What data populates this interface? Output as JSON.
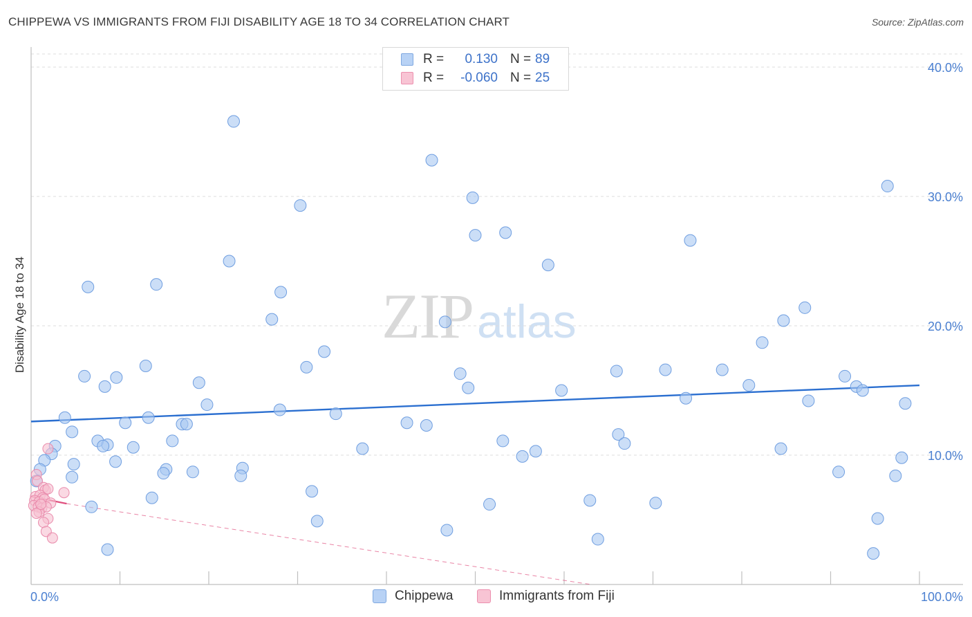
{
  "title": "CHIPPEWA VS IMMIGRANTS FROM FIJI DISABILITY AGE 18 TO 34 CORRELATION CHART",
  "source": "Source: ZipAtlas.com",
  "watermark": {
    "zip": "ZIP",
    "atlas": "atlas"
  },
  "legend": {
    "rows": [
      {
        "r_label": "R =",
        "r_value": "0.130",
        "n_label": "N =",
        "n_value": "89",
        "color": "#b8d2f5",
        "border": "#7fa8e0"
      },
      {
        "r_label": "R =",
        "r_value": "-0.060",
        "n_label": "N =",
        "n_value": "25",
        "color": "#f8c4d4",
        "border": "#ec8fae"
      }
    ]
  },
  "bottom_legend": {
    "items": [
      {
        "label": "Chippewa",
        "color": "#b8d2f5",
        "border": "#7fa8e0"
      },
      {
        "label": "Immigrants from Fiji",
        "color": "#f8c4d4",
        "border": "#ec8fae"
      }
    ]
  },
  "chart_data": {
    "type": "scatter",
    "title": "CHIPPEWA VS IMMIGRANTS FROM FIJI DISABILITY AGE 18 TO 34 CORRELATION CHART",
    "xlabel": "",
    "ylabel": "Disability Age 18 to 34",
    "xlim": [
      0,
      100
    ],
    "ylim": [
      0,
      40
    ],
    "x_tick_labels": [
      "0.0%",
      "100.0%"
    ],
    "y_ticks": [
      10,
      20,
      30,
      40
    ],
    "y_tick_labels": [
      "10.0%",
      "20.0%",
      "30.0%",
      "40.0%"
    ],
    "grid": "horizontal dashed",
    "legend_position": "top-center",
    "series": [
      {
        "name": "Chippewa",
        "color": "#a9c8f2",
        "stroke": "#6f9ee0",
        "trend": {
          "x": [
            0,
            100
          ],
          "y": [
            12.6,
            15.4
          ],
          "color": "#2b6fd0",
          "style": "solid"
        },
        "points": [
          [
            22.8,
            35.8
          ],
          [
            45.1,
            32.8
          ],
          [
            30.3,
            29.3
          ],
          [
            96.4,
            30.8
          ],
          [
            50.0,
            27.0
          ],
          [
            53.4,
            27.2
          ],
          [
            74.2,
            26.6
          ],
          [
            22.3,
            25.0
          ],
          [
            58.2,
            24.7
          ],
          [
            6.4,
            23.0
          ],
          [
            14.1,
            23.2
          ],
          [
            28.1,
            22.6
          ],
          [
            27.1,
            20.5
          ],
          [
            46.6,
            20.3
          ],
          [
            87.1,
            21.4
          ],
          [
            84.7,
            20.4
          ],
          [
            82.3,
            18.7
          ],
          [
            33.0,
            18.0
          ],
          [
            12.9,
            16.9
          ],
          [
            6.0,
            16.1
          ],
          [
            48.3,
            16.3
          ],
          [
            65.9,
            16.5
          ],
          [
            71.4,
            16.6
          ],
          [
            77.8,
            16.6
          ],
          [
            9.6,
            16.0
          ],
          [
            18.9,
            15.6
          ],
          [
            8.3,
            15.3
          ],
          [
            49.2,
            15.2
          ],
          [
            59.7,
            15.0
          ],
          [
            80.8,
            15.4
          ],
          [
            91.6,
            16.1
          ],
          [
            92.9,
            15.3
          ],
          [
            93.6,
            15.0
          ],
          [
            73.7,
            14.4
          ],
          [
            87.5,
            14.2
          ],
          [
            98.4,
            14.0
          ],
          [
            19.8,
            13.9
          ],
          [
            28.0,
            13.5
          ],
          [
            34.3,
            13.2
          ],
          [
            3.8,
            12.9
          ],
          [
            13.2,
            12.9
          ],
          [
            10.6,
            12.5
          ],
          [
            17.0,
            12.4
          ],
          [
            17.5,
            12.4
          ],
          [
            42.3,
            12.5
          ],
          [
            44.5,
            12.3
          ],
          [
            4.6,
            11.8
          ],
          [
            7.5,
            11.1
          ],
          [
            15.9,
            11.1
          ],
          [
            8.6,
            10.8
          ],
          [
            8.1,
            10.7
          ],
          [
            11.5,
            10.6
          ],
          [
            2.7,
            10.7
          ],
          [
            53.1,
            11.1
          ],
          [
            66.1,
            11.6
          ],
          [
            66.8,
            10.9
          ],
          [
            37.3,
            10.5
          ],
          [
            56.8,
            10.3
          ],
          [
            84.4,
            10.5
          ],
          [
            2.3,
            10.1
          ],
          [
            1.5,
            9.6
          ],
          [
            4.8,
            9.3
          ],
          [
            9.5,
            9.5
          ],
          [
            1.0,
            8.9
          ],
          [
            15.2,
            8.9
          ],
          [
            18.2,
            8.7
          ],
          [
            23.8,
            9.0
          ],
          [
            55.3,
            9.9
          ],
          [
            98.0,
            9.8
          ],
          [
            14.9,
            8.6
          ],
          [
            4.6,
            8.3
          ],
          [
            23.6,
            8.4
          ],
          [
            0.6,
            8.0
          ],
          [
            90.9,
            8.7
          ],
          [
            97.3,
            8.4
          ],
          [
            13.6,
            6.7
          ],
          [
            31.6,
            7.2
          ],
          [
            62.9,
            6.5
          ],
          [
            70.3,
            6.3
          ],
          [
            6.8,
            6.0
          ],
          [
            51.6,
            6.2
          ],
          [
            32.2,
            4.9
          ],
          [
            46.8,
            4.2
          ],
          [
            95.3,
            5.1
          ],
          [
            63.8,
            3.5
          ],
          [
            8.6,
            2.7
          ],
          [
            94.8,
            2.4
          ],
          [
            49.7,
            29.9
          ],
          [
            31.0,
            16.8
          ]
        ]
      },
      {
        "name": "Immigrants from Fiji",
        "color": "#f7bfd0",
        "stroke": "#e98aab",
        "trend": {
          "x": [
            0,
            4
          ],
          "y": [
            6.8,
            6.25
          ],
          "color": "#e0507f",
          "style": "solid",
          "extended": {
            "x": [
              4,
              63
            ],
            "y": [
              6.25,
              0
            ],
            "style": "dashed"
          }
        },
        "points": [
          [
            1.9,
            10.5
          ],
          [
            0.6,
            8.5
          ],
          [
            0.7,
            8.0
          ],
          [
            1.4,
            7.5
          ],
          [
            1.6,
            7.3
          ],
          [
            1.9,
            7.4
          ],
          [
            3.7,
            7.1
          ],
          [
            0.5,
            6.8
          ],
          [
            1.0,
            6.9
          ],
          [
            1.3,
            6.7
          ],
          [
            0.4,
            6.5
          ],
          [
            0.9,
            6.4
          ],
          [
            1.5,
            6.6
          ],
          [
            2.2,
            6.3
          ],
          [
            0.3,
            6.1
          ],
          [
            0.8,
            6.0
          ],
          [
            1.2,
            5.9
          ],
          [
            1.7,
            6.0
          ],
          [
            0.9,
            5.6
          ],
          [
            0.6,
            5.5
          ],
          [
            1.9,
            5.1
          ],
          [
            1.4,
            4.8
          ],
          [
            1.7,
            4.1
          ],
          [
            2.4,
            3.6
          ],
          [
            1.1,
            6.2
          ]
        ]
      }
    ]
  }
}
